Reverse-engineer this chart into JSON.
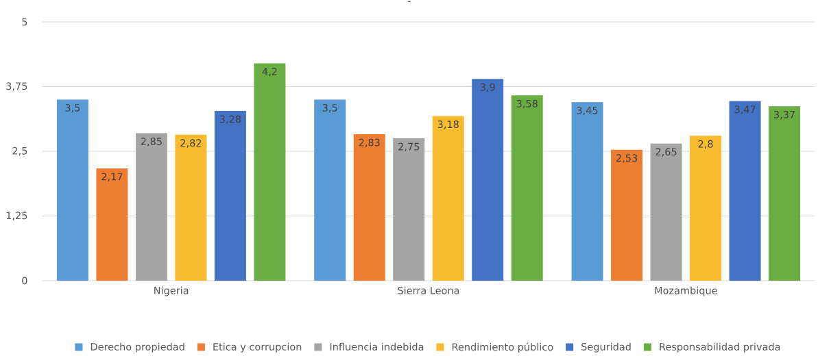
{
  "chart_data": {
    "type": "bar",
    "title": "-",
    "categories": [
      "Nigeria",
      "Sierra Leona",
      "Mozambique"
    ],
    "series": [
      {
        "name": "Derecho propiedad",
        "color": "#5b9bd5",
        "values": [
          3.5,
          3.5,
          3.45
        ],
        "value_labels": [
          "3,5",
          "3,5",
          "3,45"
        ]
      },
      {
        "name": "Etica y corrupcion",
        "color": "#ed7d31",
        "values": [
          2.17,
          2.83,
          2.53
        ],
        "value_labels": [
          "2,17",
          "2,83",
          "2,53"
        ]
      },
      {
        "name": "Influencia indebida",
        "color": "#a5a5a5",
        "values": [
          2.85,
          2.75,
          2.65
        ],
        "value_labels": [
          "2,85",
          "2,75",
          "2,65"
        ]
      },
      {
        "name": "Rendimiento público",
        "color": "#f6bb2f",
        "values": [
          2.82,
          3.18,
          2.8
        ],
        "value_labels": [
          "2,82",
          "3,18",
          "2,8"
        ]
      },
      {
        "name": "Seguridad",
        "color": "#4472c4",
        "values": [
          3.28,
          3.9,
          3.47
        ],
        "value_labels": [
          "3,28",
          "3,9",
          "3,47"
        ]
      },
      {
        "name": "Responsabilidad privada",
        "color": "#6aae43",
        "values": [
          4.2,
          3.58,
          3.37
        ],
        "value_labels": [
          "4,2",
          "3,58",
          "3,37"
        ]
      }
    ],
    "ylim": [
      0,
      5
    ],
    "yticks": [
      0,
      {
        "value": 1.25,
        "label": "1,25"
      },
      {
        "value": 2.5,
        "label": "2,5"
      },
      {
        "value": 3.75,
        "label": "3,75"
      },
      5
    ],
    "grid": "y",
    "legend": "bottom"
  }
}
